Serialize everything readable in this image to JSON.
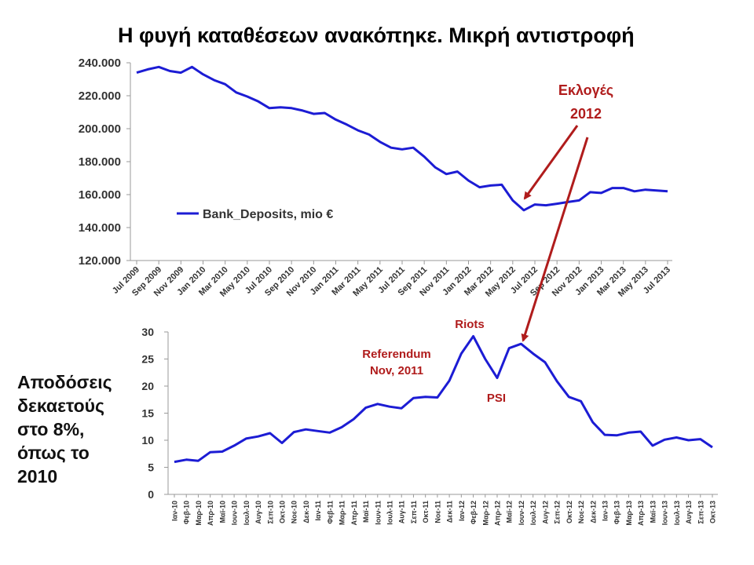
{
  "slide_title": "Η φυγή καταθέσεων ανακόπηκε. Μικρή αντιστροφή",
  "side_text": [
    "Αποδόσεις",
    "δεκαετούς",
    "στο 8%,",
    "όπως το",
    "2010"
  ],
  "colors": {
    "line": "#1c1cd4",
    "annotation": "#b01c1c",
    "axis": "#9a9a9a"
  },
  "chart_data": [
    {
      "type": "line",
      "title": "",
      "ylim": [
        120000,
        240000
      ],
      "yticks": [
        "120.000",
        "140.000",
        "160.000",
        "180.000",
        "200.000",
        "220.000",
        "240.000"
      ],
      "ytick_values": [
        120000,
        140000,
        160000,
        180000,
        200000,
        220000,
        240000
      ],
      "xtick_labels": [
        "Jul 2009",
        "Sep 2009",
        "Nov 2009",
        "Jan 2010",
        "Mar 2010",
        "May 2010",
        "Jul 2010",
        "Sep 2010",
        "Nov 2010",
        "Jan 2011",
        "Mar 2011",
        "May 2011",
        "Jul 2011",
        "Sep 2011",
        "Nov 2011",
        "Jan 2012",
        "Mar 2012",
        "May 2012",
        "Jul 2012",
        "Sep 2012",
        "Nov 2012",
        "Jan 2013",
        "Mar 2013",
        "May 2013",
        "Jul 2013"
      ],
      "grid": false,
      "legend_position": "lower-left",
      "series": [
        {
          "name": "Bank_Deposits, mio €",
          "values": [
            234000,
            236000,
            237500,
            235000,
            234000,
            237500,
            233000,
            229500,
            227000,
            222000,
            219500,
            216500,
            212500,
            213000,
            212500,
            211000,
            209000,
            209500,
            205500,
            202500,
            199000,
            196500,
            192000,
            188500,
            187500,
            188500,
            183000,
            176500,
            172500,
            174000,
            168500,
            164500,
            165500,
            166000,
            156500,
            150500,
            154000,
            153500,
            154500,
            155500,
            156500,
            161500,
            161000,
            164000,
            164000,
            162000,
            163000,
            162500,
            162000
          ]
        }
      ],
      "annotations": [
        {
          "text_lines": [
            "Εκλογές",
            "2012"
          ]
        }
      ]
    },
    {
      "type": "line",
      "title": "",
      "ylim": [
        0,
        30
      ],
      "yticks": [
        "0",
        "5",
        "10",
        "15",
        "20",
        "25",
        "30"
      ],
      "ytick_values": [
        0,
        5,
        10,
        15,
        20,
        25,
        30
      ],
      "categories": [
        "Ιαν-10",
        "Φεβ-10",
        "Μαρ-10",
        "Απρ-10",
        "Μαϊ-10",
        "Ιουν-10",
        "Ιουλ-10",
        "Αυγ-10",
        "Σεπ-10",
        "Οκτ-10",
        "Νοε-10",
        "Δεκ-10",
        "Ιαν-11",
        "Φεβ-11",
        "Μαρ-11",
        "Απρ-11",
        "Μαϊ-11",
        "Ιουν-11",
        "Ιουλ-11",
        "Αυγ-11",
        "Σεπ-11",
        "Οκτ-11",
        "Νοε-11",
        "Δεκ-11",
        "Ιαν-12",
        "Φεβ-12",
        "Μαρ-12",
        "Απρ-12",
        "Μαϊ-12",
        "Ιουν-12",
        "Ιουλ-12",
        "Αυγ-12",
        "Σεπ-12",
        "Οκτ-12",
        "Νοε-12",
        "Δεκ-12",
        "Ιαν-13",
        "Φεβ-13",
        "Μαρ-13",
        "Απρ-13",
        "Μαϊ-13",
        "Ιουν-13",
        "Ιουλ-13",
        "Αυγ-13",
        "Σεπ-13",
        "Οκτ-13"
      ],
      "grid": false,
      "series": [
        {
          "values": [
            6.0,
            6.4,
            6.2,
            7.8,
            7.9,
            9.0,
            10.3,
            10.7,
            11.3,
            9.5,
            11.5,
            12.0,
            11.7,
            11.4,
            12.4,
            13.9,
            16.0,
            16.7,
            16.2,
            15.9,
            17.8,
            18.0,
            17.9,
            21.0,
            26.0,
            29.2,
            25.0,
            21.5,
            27.0,
            27.8,
            26.0,
            24.4,
            20.9,
            18.0,
            17.2,
            13.3,
            11.0,
            10.9,
            11.4,
            11.6,
            9.0,
            10.1,
            10.5,
            10.0,
            10.2,
            8.7
          ]
        }
      ],
      "annotations": [
        {
          "text_lines": [
            "Referendum",
            "Nov, 2011"
          ]
        },
        {
          "text_lines": [
            "Riots"
          ]
        },
        {
          "text_lines": [
            "PSI"
          ]
        }
      ]
    }
  ]
}
